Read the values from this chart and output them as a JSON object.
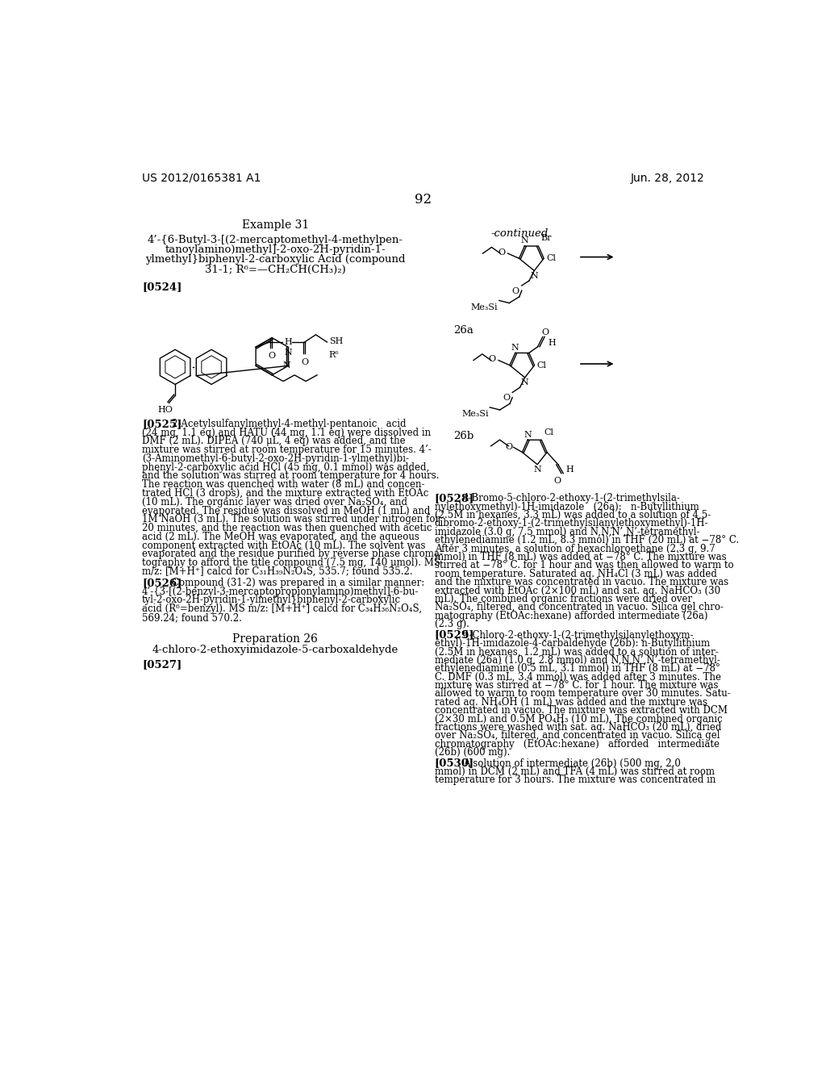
{
  "bg": "#ffffff",
  "header_left": "US 2012/0165381 A1",
  "header_right": "Jun. 28, 2012",
  "page_num": "92",
  "example31_heading": "Example 31",
  "example31_title": [
    "4’-{6-Butyl-3-[(2-mercaptomethyl-4-methylpen-",
    "tanoylamino)methyl]-2-oxo-2H-pyridin-1-",
    "ylmethyl}biphenyl-2-carboxylic Acid (compound",
    "31-1; R⁶=—CH₂CH(CH₃)₂)"
  ],
  "continued_label": "-continued",
  "label_26a": "26a",
  "label_26b": "26b",
  "prep26_heading": "Preparation 26",
  "prep26_subtitle": "4-chloro-2-ethoxyimidazole-5-carboxaldehyde",
  "para_0524": "[0524]",
  "para_0525": "[0525]",
  "para_0526": "[0526]",
  "para_0527": "[0527]",
  "para_0528": "[0528]",
  "para_0529": "[0529]",
  "para_0530": "[0530]",
  "text_0525": [
    "2-Acetylsulfanylmethyl-4-methyl-pentanoic   acid",
    "(24 mg, 1.1 eq) and HATU (44 mg, 1.1 eq) were dissolved in",
    "DMF (2 mL). DIPEA (740 μL, 4 eq) was added, and the",
    "mixture was stirred at room temperature for 15 minutes. 4’-",
    "(3-Aminomethyl-6-butyl-2-oxo-2H-pyridin-1-ylmethyl)bi-",
    "phenyl-2-carboxylic acid HCl (45 mg, 0.1 mmol) was added,",
    "and the solution was stirred at room temperature for 4 hours.",
    "The reaction was quenched with water (8 mL) and concen-",
    "trated HCl (3 drops), and the mixture extracted with EtOAc",
    "(10 mL). The organic layer was dried over Na₂SO₄, and",
    "evaporated. The residue was dissolved in MeOH (1 mL) and",
    "1M NaOH (3 mL). The solution was stirred under nitrogen for",
    "20 minutes, and the reaction was then quenched with acetic",
    "acid (2 mL). The MeOH was evaporated, and the aqueous",
    "component extracted with EtOAc (10 mL). The solvent was",
    "evaporated and the residue purified by reverse phase chroma-",
    "tography to afford the title compound (7.5 mg, 140 μmol). MS",
    "m/z: [M+H⁺] calcd for C₃₁H₃₉N₂O₄S, 535.7; found 535.2."
  ],
  "text_0526": [
    "Compound (31-2) was prepared in a similar manner:",
    "4’-{3-[(2-benzyl-3-mercaptopropionylamino)methyl]-6-bu-",
    "tyl-2-oxo-2H-pyridin-1-ylmethyl}biphenyl-2-carboxylic",
    "acid (R⁶=benzyl). MS m/z: [M+H⁺] calcd for C₃₄H₃₆N₂O₄S,",
    "569.24; found 570.2."
  ],
  "text_0528": [
    "4-Bromo-5-chloro-2-ethoxy-1-(2-trimethylsila-",
    "nylethoxymethyl)-1H-imidazole   (26a):   n-Butyllithium",
    "(2.5M in hexanes, 3.3 mL) was added to a solution of 4,5-",
    "dibromo-2-ethoxy-1-(2-trimethylsilanylethoxymethyl)-1H-",
    "imidazole (3.0 g, 7.5 mmol) and N,N,N’,N’-tetramethyl-",
    "ethylenediamine (1.2 mL, 8.3 mmol) in THF (20 mL) at −78° C.",
    "After 3 minutes, a solution of hexachloroethane (2.3 g, 9.7",
    "mmol) in THF (8 mL) was added at −78° C. The mixture was",
    "stirred at −78° C. for 1 hour and was then allowed to warm to",
    "room temperature. Saturated aq. NH₄Cl (3 mL) was added",
    "and the mixture was concentrated in vacuo. The mixture was",
    "extracted with EtOAc (2×100 mL) and sat. aq. NaHCO₃ (30",
    "mL). The combined organic fractions were dried over",
    "Na₂SO₄, filtered, and concentrated in vacuo. Silica gel chro-",
    "matography (EtOAc:hexane) afforded intermediate (26a)",
    "(2.3 g)."
  ],
  "text_0529": [
    "5-Chloro-2-ethoxy-1-(2-trimethylsilanylethoxym-",
    "ethyl)-1H-imidazole-4-carbaldehyde (26b): n-Butyllithium",
    "(2.5M in hexanes, 1.2 mL) was added to a solution of inter-",
    "mediate (26a) (1.0 g, 2.8 mmol) and N,N,N’,N’-tetramethyl-",
    "ethylenediamine (0.5 mL, 3.1 mmol) in THF (8 mL) at −78°",
    "C. DMF (0.3 mL, 3.4 mmol) was added after 3 minutes. The",
    "mixture was stirred at −78° C. for 1 hour. The mixture was",
    "allowed to warm to room temperature over 30 minutes. Satu-",
    "rated aq. NH₄OH (1 mL) was added and the mixture was",
    "concentrated in vacuo. The mixture was extracted with DCM",
    "(2×30 mL) and 0.5M PO₄H₃ (10 mL). The combined organic",
    "fractions were washed with sat. aq. NaHCO₃ (20 mL), dried",
    "over Na₂SO₄, filtered, and concentrated in vacuo. Silica gel",
    "chromatography   (EtOAc:hexane)   afforded   intermediate",
    "(26b) (600 mg)."
  ],
  "text_0530": [
    "A solution of intermediate (26b) (500 mg, 2.0",
    "mmol) in DCM (2 mL) and TFA (4 mL) was stirred at room",
    "temperature for 3 hours. The mixture was concentrated in"
  ]
}
